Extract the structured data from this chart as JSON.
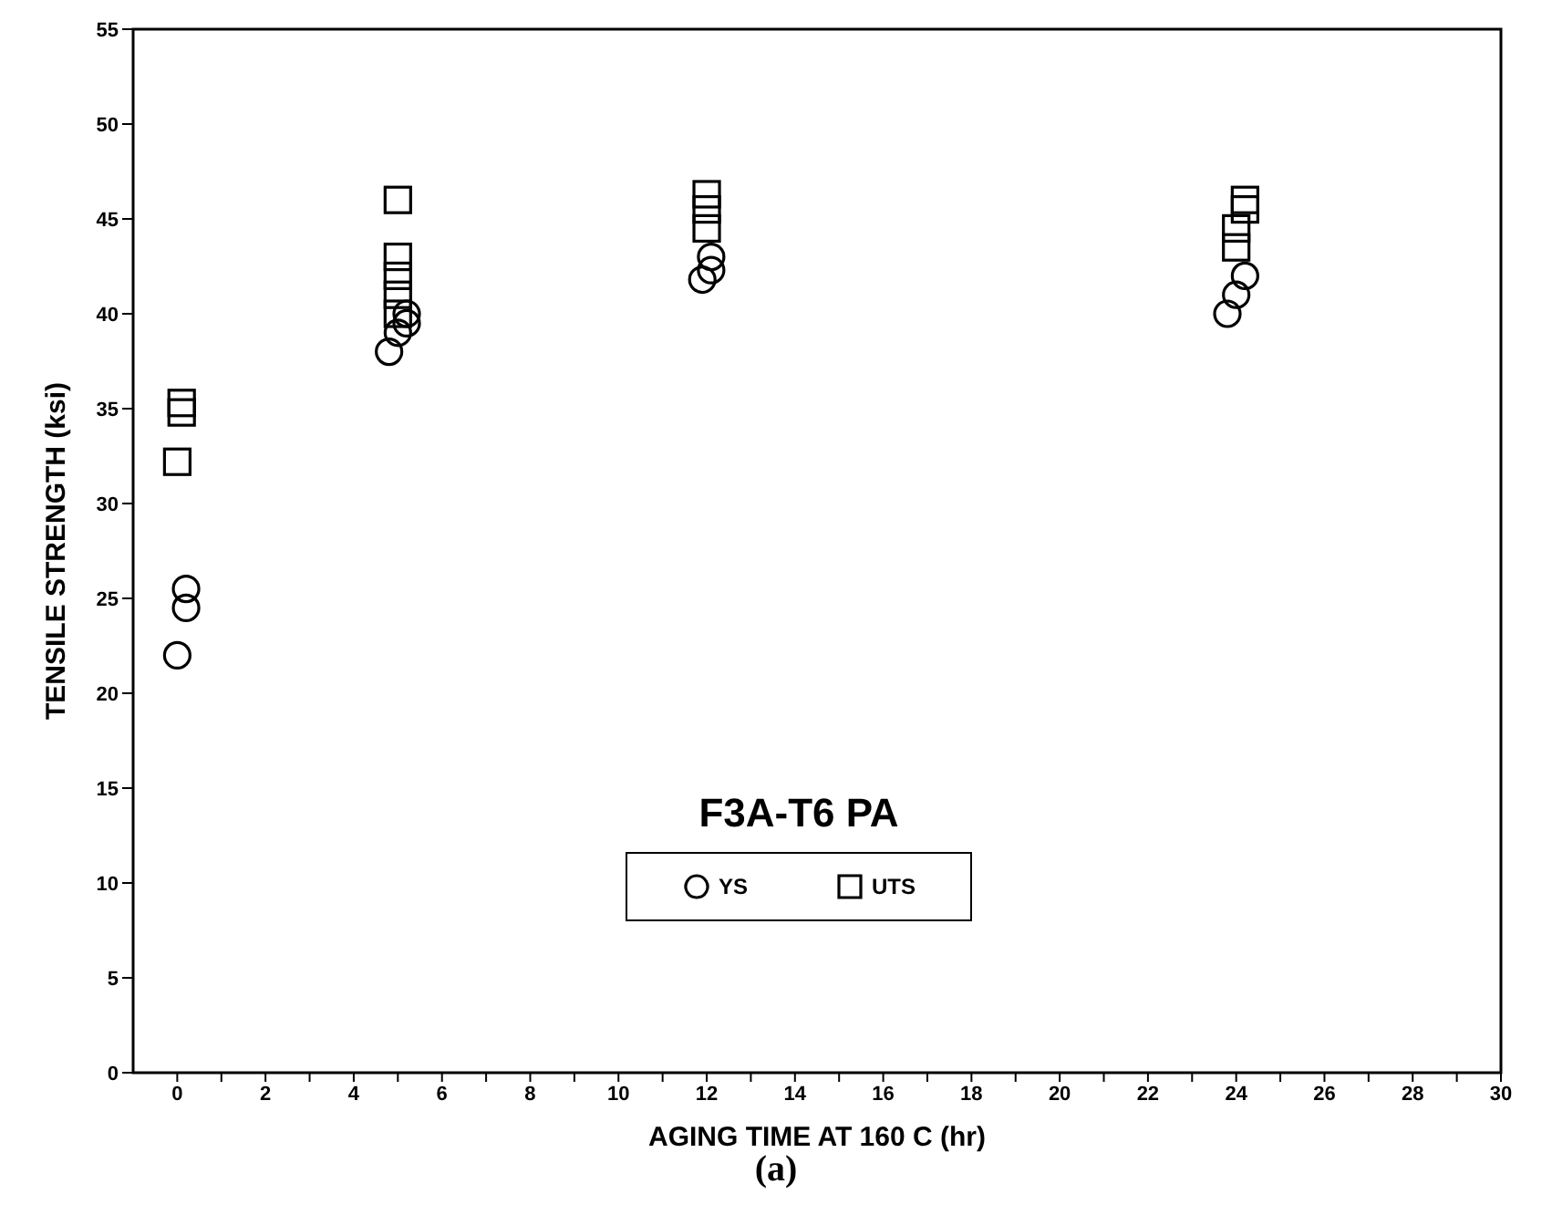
{
  "chart_data": {
    "type": "scatter",
    "xlabel": "AGING TIME AT 160 C (hr)",
    "ylabel": "TENSILE STRENGTH (ksi)",
    "legend_title": "F3A-T6 PA",
    "legend": "bottom",
    "grid": false,
    "annotations": [
      "(a)"
    ],
    "xlim": [
      -1,
      30
    ],
    "ylim": [
      0,
      55
    ],
    "xticks": [
      0,
      {
        "value": 1,
        "label": null
      },
      2,
      {
        "value": 3,
        "label": null
      },
      4,
      {
        "value": 5,
        "label": null
      },
      6,
      {
        "value": 7,
        "label": null
      },
      8,
      {
        "value": 9,
        "label": null
      },
      10,
      {
        "value": 11,
        "label": null
      },
      12,
      {
        "value": 13,
        "label": null
      },
      14,
      {
        "value": 15,
        "label": null
      },
      16,
      {
        "value": 17,
        "label": null
      },
      18,
      {
        "value": 19,
        "label": null
      },
      20,
      {
        "value": 21,
        "label": null
      },
      22,
      {
        "value": 23,
        "label": null
      },
      24,
      {
        "value": 25,
        "label": null
      },
      26,
      {
        "value": 27,
        "label": null
      },
      28,
      {
        "value": 29,
        "label": null
      },
      30
    ],
    "yticks": [
      0,
      5,
      10,
      15,
      20,
      25,
      30,
      35,
      40,
      45,
      50,
      55
    ],
    "series": [
      {
        "name": "YS",
        "color": "#000000",
        "marker": "circle",
        "x": [
          0,
          0.2,
          0.2,
          4.8,
          5,
          5.2,
          5.2,
          11.9,
          12.1,
          12.1,
          23.8,
          24,
          24.2
        ],
        "values": [
          22,
          24.5,
          25.5,
          38,
          39,
          40,
          39.5,
          41.8,
          42.3,
          43,
          40,
          41,
          42
        ]
      },
      {
        "name": "UTS",
        "color": "#000000",
        "marker": "square",
        "x": [
          0,
          0.1,
          0.1,
          5,
          5,
          5,
          5,
          5,
          12,
          12,
          12,
          24,
          24,
          24.2,
          24.2
        ],
        "values": [
          32.2,
          34.8,
          35.3,
          40,
          41,
          42,
          43,
          46,
          44.5,
          45.5,
          46.3,
          43.5,
          44.5,
          45.5,
          46
        ]
      }
    ]
  }
}
